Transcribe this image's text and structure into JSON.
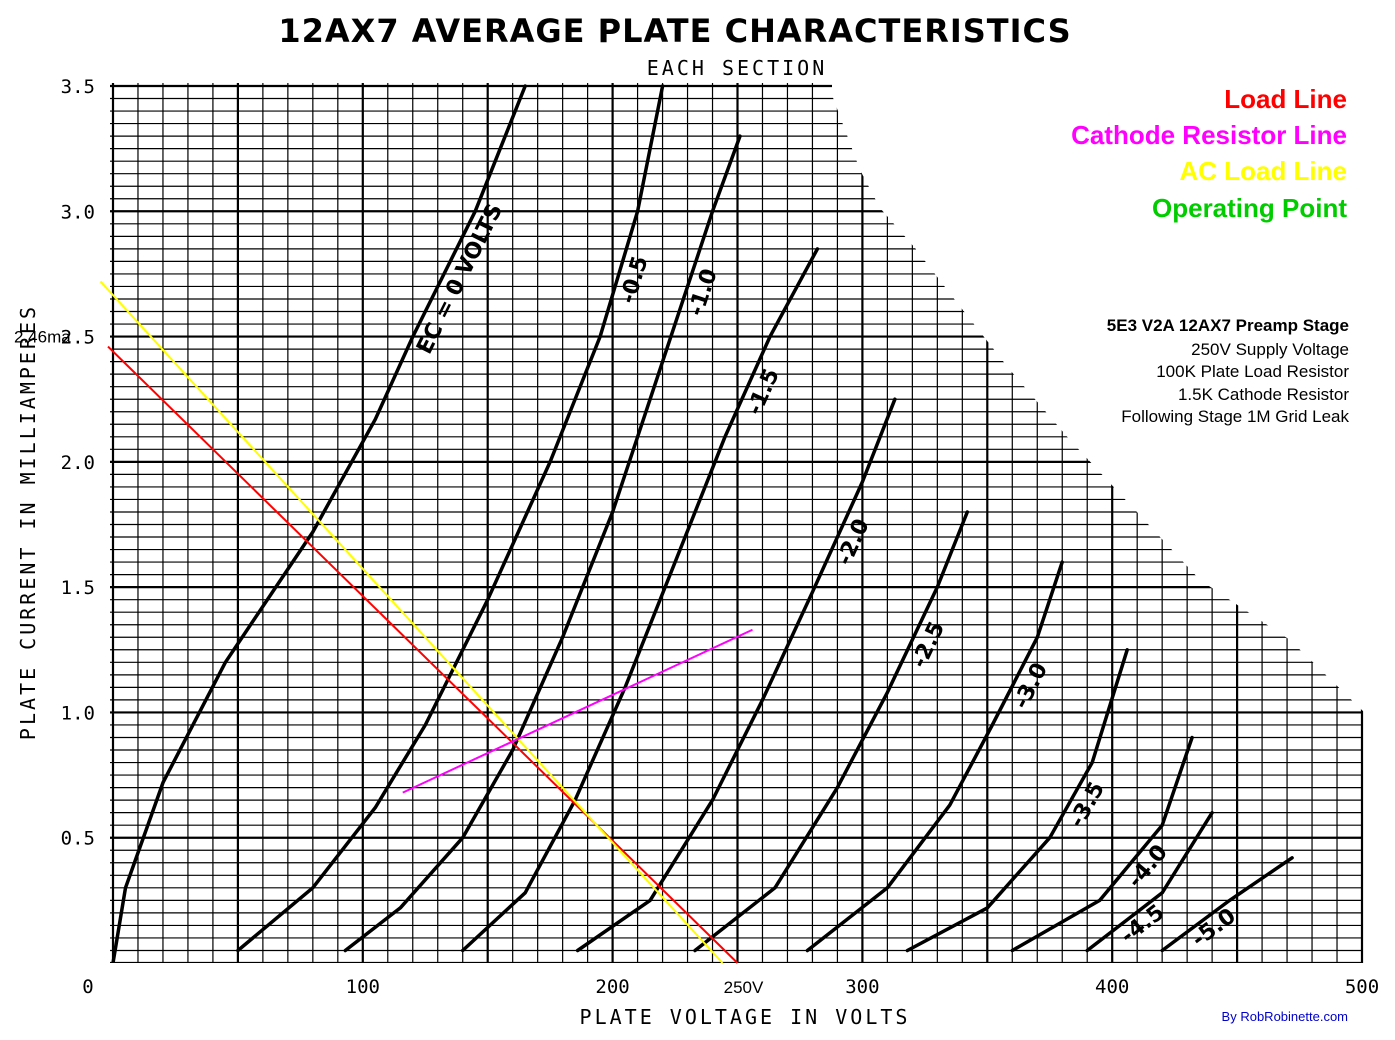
{
  "chart_data": {
    "type": "line",
    "title": "12AX7 AVERAGE PLATE CHARACTERISTICS",
    "subtitle": "EACH SECTION",
    "xlabel": "PLATE VOLTAGE IN VOLTS",
    "ylabel": "PLATE CURRENT IN MILLIAMPERES",
    "xlim": [
      0,
      500
    ],
    "ylim": [
      0,
      3.5
    ],
    "x_ticks": [
      "0",
      "100",
      "200",
      "300",
      "400",
      "500"
    ],
    "y_ticks": [
      "0.5",
      "1.0",
      "1.5",
      "2.0",
      "2.5",
      "3.0",
      "3.5"
    ],
    "grid": true,
    "series": [
      {
        "name": "EC = 0 VOLTS",
        "label": "EC = 0 VOLTS",
        "points": [
          [
            0,
            0
          ],
          [
            5,
            0.3
          ],
          [
            20,
            0.72
          ],
          [
            45,
            1.2
          ],
          [
            80,
            1.72
          ],
          [
            105,
            2.17
          ],
          [
            120,
            2.5
          ],
          [
            145,
            3.0
          ],
          [
            165,
            3.5
          ]
        ]
      },
      {
        "name": "-0.5",
        "label": "-0.5",
        "points": [
          [
            50,
            0.05
          ],
          [
            80,
            0.3
          ],
          [
            105,
            0.62
          ],
          [
            125,
            0.95
          ],
          [
            150,
            1.45
          ],
          [
            175,
            2.0
          ],
          [
            195,
            2.5
          ],
          [
            210,
            3.0
          ],
          [
            220,
            3.5
          ]
        ]
      },
      {
        "name": "-1.0",
        "label": "-1.0",
        "points": [
          [
            93,
            0.05
          ],
          [
            115,
            0.22
          ],
          [
            140,
            0.5
          ],
          [
            160,
            0.85
          ],
          [
            180,
            1.3
          ],
          [
            200,
            1.8
          ],
          [
            220,
            2.4
          ],
          [
            240,
            3.0
          ],
          [
            251,
            3.3
          ]
        ]
      },
      {
        "name": "-1.5",
        "label": "-1.5",
        "points": [
          [
            140,
            0.05
          ],
          [
            165,
            0.28
          ],
          [
            185,
            0.65
          ],
          [
            205,
            1.1
          ],
          [
            225,
            1.6
          ],
          [
            245,
            2.1
          ],
          [
            263,
            2.5
          ],
          [
            282,
            2.85
          ]
        ]
      },
      {
        "name": "-2.0",
        "label": "-2.0",
        "points": [
          [
            186,
            0.05
          ],
          [
            215,
            0.25
          ],
          [
            240,
            0.65
          ],
          [
            260,
            1.05
          ],
          [
            280,
            1.48
          ],
          [
            300,
            1.92
          ],
          [
            313,
            2.25
          ]
        ]
      },
      {
        "name": "-2.5",
        "label": "-2.5",
        "points": [
          [
            233,
            0.05
          ],
          [
            265,
            0.3
          ],
          [
            290,
            0.7
          ],
          [
            310,
            1.08
          ],
          [
            330,
            1.5
          ],
          [
            342,
            1.8
          ]
        ]
      },
      {
        "name": "-3.0",
        "label": "-3.0",
        "points": [
          [
            278,
            0.05
          ],
          [
            310,
            0.3
          ],
          [
            335,
            0.63
          ],
          [
            352,
            0.95
          ],
          [
            370,
            1.3
          ],
          [
            380,
            1.6
          ]
        ]
      },
      {
        "name": "-3.5",
        "label": "-3.5",
        "points": [
          [
            318,
            0.05
          ],
          [
            350,
            0.22
          ],
          [
            375,
            0.5
          ],
          [
            392,
            0.8
          ],
          [
            406,
            1.25
          ]
        ]
      },
      {
        "name": "-4.0",
        "label": "-4.0",
        "points": [
          [
            360,
            0.05
          ],
          [
            395,
            0.25
          ],
          [
            420,
            0.55
          ],
          [
            432,
            0.9
          ]
        ]
      },
      {
        "name": "-4.5",
        "label": "-4.5",
        "points": [
          [
            390,
            0.05
          ],
          [
            420,
            0.28
          ],
          [
            440,
            0.6
          ]
        ]
      },
      {
        "name": "-5.0",
        "label": "-5.0",
        "points": [
          [
            420,
            0.05
          ],
          [
            447,
            0.25
          ],
          [
            472,
            0.42
          ]
        ]
      }
    ],
    "overlays": [
      {
        "name": "Load Line",
        "color": "#ff0000",
        "points": [
          [
            0,
            2.46
          ],
          [
            250,
            0
          ]
        ]
      },
      {
        "name": "AC Load Line",
        "color": "#ffff00",
        "points": [
          [
            -5,
            2.72
          ],
          [
            244,
            0
          ]
        ]
      },
      {
        "name": "Cathode Resistor Line",
        "color": "#ff00ff",
        "points": [
          [
            116,
            0.68
          ],
          [
            256,
            1.33
          ]
        ]
      }
    ],
    "annotations": [
      {
        "text": "2.46ma",
        "x": 0,
        "y": 2.46,
        "color": "#ff0000"
      },
      {
        "text": "250V",
        "x": 250,
        "y": 0,
        "color": "#ff0000"
      }
    ]
  },
  "legend": [
    {
      "label": "Load Line",
      "color": "#ff0000"
    },
    {
      "label": "Cathode Resistor Line",
      "color": "#ff00ff"
    },
    {
      "label": "AC Load Line",
      "color": "#ffff00"
    },
    {
      "label": "Operating Point",
      "color": "#00cc00"
    }
  ],
  "info": {
    "heading": "5E3 V2A 12AX7 Preamp Stage",
    "lines": [
      "250V Supply Voltage",
      "100K Plate Load Resistor",
      "1.5K Cathode Resistor",
      "Following Stage 1M Grid Leak"
    ]
  },
  "credit": {
    "text": "By RobRobinette.com",
    "color": "#0000cc"
  }
}
